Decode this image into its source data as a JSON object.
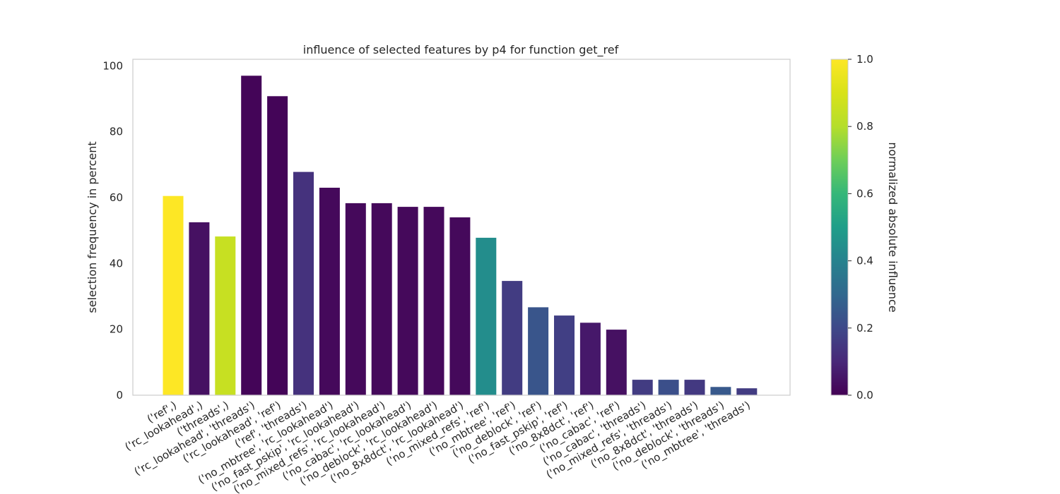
{
  "chart_data": {
    "type": "bar",
    "title": "influence of selected features by p4 for function get_ref",
    "xlabel": "",
    "ylabel": "selection frequency in percent",
    "ylim": [
      0,
      102
    ],
    "yticks": [
      0,
      20,
      40,
      60,
      80,
      100
    ],
    "grid": false,
    "categories": [
      "('ref',)",
      "('rc_lookahead',)",
      "('threads',)",
      "('rc_lookahead', 'threads')",
      "('rc_lookahead', 'ref')",
      "('ref', 'threads')",
      "('no_mbtree', 'rc_lookahead')",
      "('no_fast_pskip', 'rc_lookahead')",
      "('no_mixed_refs', 'rc_lookahead')",
      "('no_cabac', 'rc_lookahead')",
      "('no_deblock', 'rc_lookahead')",
      "('no_8x8dct', 'rc_lookahead')",
      "('no_mixed_refs', 'ref')",
      "('no_mbtree', 'ref')",
      "('no_deblock', 'ref')",
      "('no_fast_pskip', 'ref')",
      "('no_8x8dct', 'ref')",
      "('no_cabac', 'ref')",
      "('no_cabac', 'threads')",
      "('no_mixed_refs', 'threads')",
      "('no_8x8dct', 'threads')",
      "('no_deblock', 'threads')",
      "('no_mbtree', 'threads')"
    ],
    "values": [
      60.5,
      52.5,
      48.2,
      97.0,
      90.8,
      67.8,
      63.0,
      58.3,
      58.3,
      57.2,
      57.2,
      54.0,
      47.8,
      34.7,
      26.7,
      24.2,
      22.0,
      19.9,
      4.7,
      4.7,
      4.7,
      2.5,
      2.1
    ],
    "influence": [
      1.0,
      0.04,
      0.85,
      0.01,
      0.01,
      0.13,
      0.02,
      0.02,
      0.02,
      0.02,
      0.02,
      0.02,
      0.44,
      0.16,
      0.24,
      0.17,
      0.06,
      0.04,
      0.16,
      0.22,
      0.15,
      0.25,
      0.16
    ],
    "colorbar": {
      "label": "normalized absolute influence",
      "range": [
        0.0,
        1.0
      ],
      "ticks": [
        "0.0",
        "0.2",
        "0.4",
        "0.6",
        "0.8",
        "1.0"
      ],
      "colormap": "viridis"
    },
    "colors": {
      "axes_edge": "#cccccc",
      "text": "#262626"
    }
  }
}
